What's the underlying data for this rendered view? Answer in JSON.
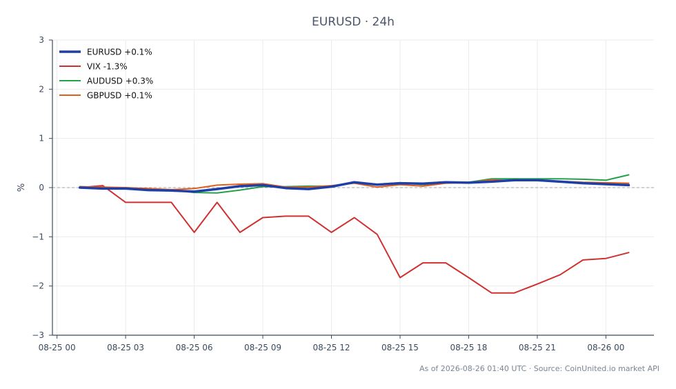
{
  "chart_data": {
    "type": "line",
    "title": "EURUSD · 24h",
    "xlabel": "",
    "ylabel": "%",
    "ylim": [
      -3,
      3
    ],
    "yticks": [
      -3,
      -2,
      -1,
      0,
      1,
      2,
      3
    ],
    "ytick_labels": [
      "−3",
      "−2",
      "−1",
      "0",
      "1",
      "2",
      "3"
    ],
    "xlim": [
      -0.2,
      26.1
    ],
    "xtick_positions": [
      0,
      3,
      6,
      9,
      12,
      15,
      18,
      21,
      24
    ],
    "xtick_labels": [
      "08-25 00",
      "08-25 03",
      "08-25 06",
      "08-25 09",
      "08-25 12",
      "08-25 15",
      "08-25 18",
      "08-25 21",
      "08-26 00"
    ],
    "x": [
      1,
      2,
      3,
      4,
      5,
      6,
      7,
      8,
      9,
      10,
      11,
      12,
      13,
      14,
      15,
      16,
      17,
      18,
      19,
      20,
      21,
      22,
      23,
      24,
      25
    ],
    "grid": true,
    "zero_line": true,
    "legend_position": "top-left",
    "series": [
      {
        "name": "EURUSD +0.1%",
        "color": "#1f3fa8",
        "width": 3.5,
        "values": [
          0.0,
          -0.02,
          -0.02,
          -0.05,
          -0.06,
          -0.08,
          -0.03,
          0.03,
          0.05,
          -0.01,
          -0.03,
          0.02,
          0.11,
          0.06,
          0.09,
          0.08,
          0.11,
          0.1,
          0.12,
          0.15,
          0.15,
          0.12,
          0.09,
          0.07,
          0.05
        ]
      },
      {
        "name": "VIX -1.3%",
        "color": "#d03030",
        "width": 2,
        "values": [
          0.0,
          0.04,
          -0.3,
          -0.3,
          -0.3,
          -0.91,
          -0.3,
          -0.91,
          -0.61,
          -0.58,
          -0.58,
          -0.91,
          -0.61,
          -0.95,
          -1.83,
          -1.53,
          -1.53,
          -1.83,
          -2.14,
          -2.14,
          -1.96,
          -1.77,
          -1.47,
          -1.44,
          -1.32
        ]
      },
      {
        "name": "AUDUSD +0.3%",
        "color": "#22a04a",
        "width": 2,
        "values": [
          0.02,
          0.0,
          0.0,
          -0.03,
          -0.05,
          -0.1,
          -0.11,
          -0.05,
          0.02,
          0.02,
          0.03,
          0.03,
          0.1,
          0.07,
          0.1,
          0.06,
          0.1,
          0.11,
          0.18,
          0.18,
          0.18,
          0.18,
          0.17,
          0.15,
          0.26
        ]
      },
      {
        "name": "GBPUSD +0.1%",
        "color": "#e0601a",
        "width": 2,
        "values": [
          0.02,
          0.01,
          0.0,
          -0.02,
          -0.04,
          -0.02,
          0.05,
          0.07,
          0.08,
          0.01,
          0.01,
          0.04,
          0.09,
          0.01,
          0.06,
          0.03,
          0.09,
          0.1,
          0.16,
          0.14,
          0.14,
          0.13,
          0.11,
          0.1,
          0.09
        ]
      }
    ]
  },
  "footer": "As of 2026-08-26 01:40 UTC · Source: CoinUnited.io market API"
}
